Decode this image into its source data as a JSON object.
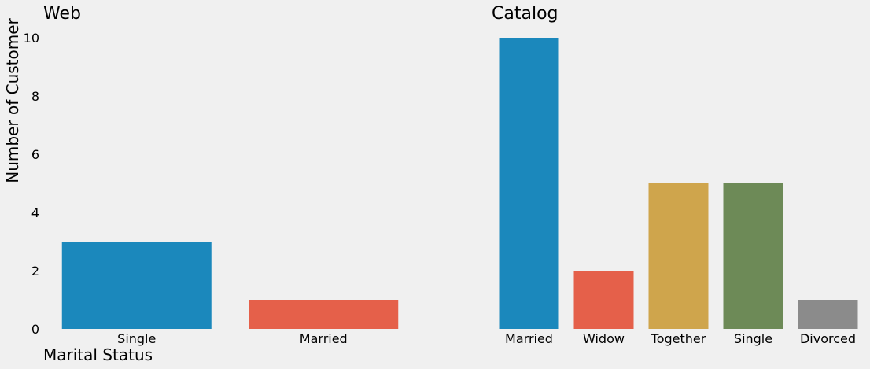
{
  "chart_data": [
    {
      "type": "bar",
      "title": "Web",
      "categories": [
        "Single",
        "Married"
      ],
      "values": [
        3,
        1
      ],
      "colors": [
        "#1b88bc",
        "#e5604a"
      ],
      "xlabel": "Marital Status",
      "ylabel": "Number of Customer",
      "ylim": [
        0,
        10
      ],
      "yticks": [
        0,
        2,
        4,
        6,
        8,
        10
      ],
      "grid": false
    },
    {
      "type": "bar",
      "title": "Catalog",
      "categories": [
        "Married",
        "Widow",
        "Together",
        "Single",
        "Divorced"
      ],
      "values": [
        10,
        2,
        5,
        5,
        1
      ],
      "colors": [
        "#1b88bc",
        "#e5604a",
        "#cfa54c",
        "#6d8a57",
        "#8b8b8b"
      ],
      "xlabel": "",
      "ylabel": "",
      "ylim": [
        0,
        10
      ],
      "grid": false
    }
  ]
}
